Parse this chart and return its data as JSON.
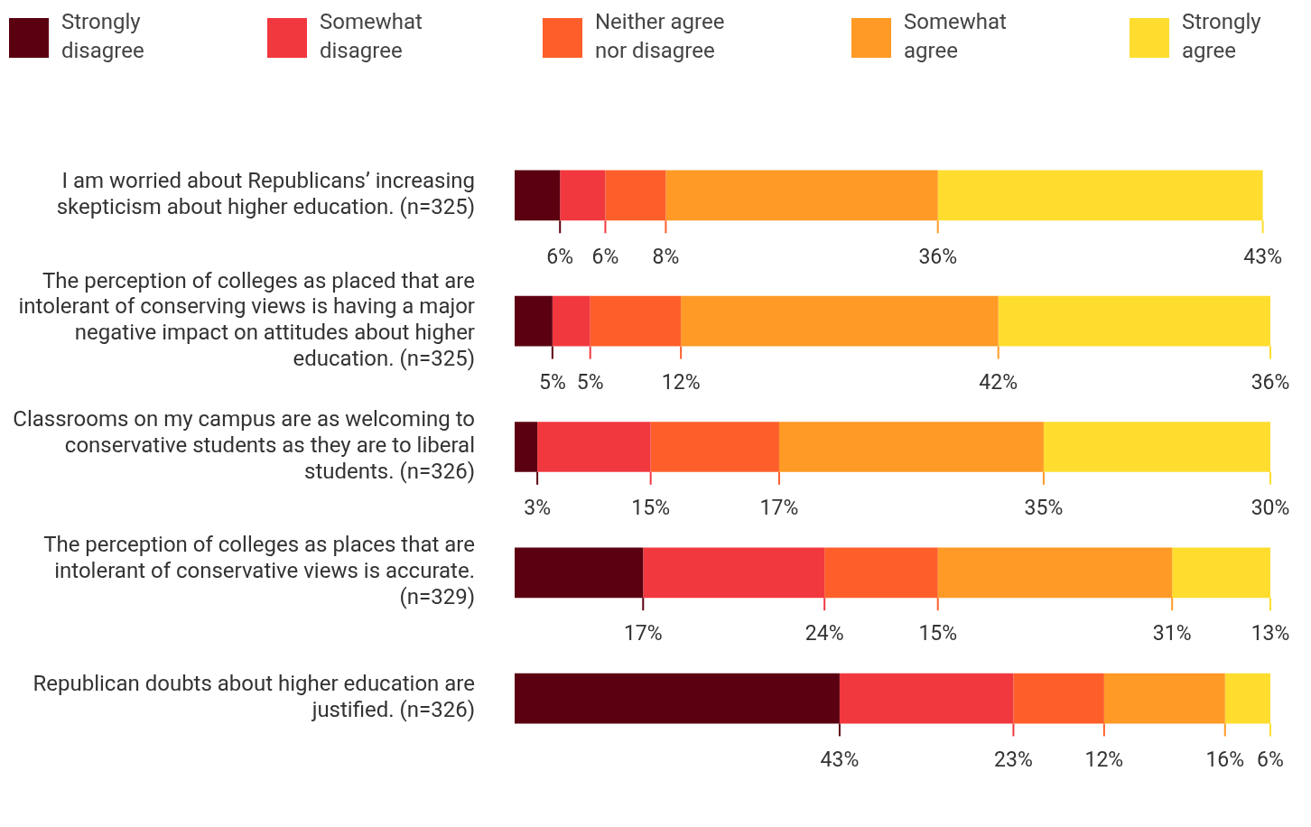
{
  "chart_data": {
    "type": "bar",
    "orientation": "horizontal",
    "stacked": true,
    "legend": "top",
    "categories": [
      "I am worried about Republicans’ increasing skepticism about higher education. (n=325)",
      "The perception of colleges as placed that are intolerant of conserving views is having a major negative impact on attitudes about higher education. (n=325)",
      "Classrooms on my campus are as welcoming to conservative students as they are to liberal students. (n=326)",
      "The perception of colleges as places that are intolerant of conservative views is accurate. (n=329)",
      "Republican doubts about higher education are justified. (n=326)"
    ],
    "series": [
      {
        "name": "Strongly disagree",
        "color": "#5b0010",
        "values": [
          6,
          5,
          3,
          17,
          43
        ],
        "value_labels": [
          "6%",
          "5%",
          "3%",
          "17%",
          "43%"
        ]
      },
      {
        "name": "Somewhat disagree",
        "color": "#f2383f",
        "values": [
          6,
          5,
          15,
          24,
          23
        ],
        "value_labels": [
          "6%",
          "5%",
          "15%",
          "24%",
          "23%"
        ]
      },
      {
        "name": "Neither agree nor disagree",
        "color": "#fe5f2a",
        "values": [
          8,
          12,
          17,
          15,
          12
        ],
        "value_labels": [
          "8%",
          "12%",
          "17%",
          "15%",
          "12%"
        ]
      },
      {
        "name": "Somewhat agree",
        "color": "#fe9a25",
        "values": [
          36,
          42,
          35,
          31,
          16
        ],
        "value_labels": [
          "36%",
          "42%",
          "35%",
          "31%",
          "16%"
        ]
      },
      {
        "name": "Strongly agree",
        "color": "#fedd2f",
        "values": [
          43,
          36,
          30,
          13,
          6
        ],
        "value_labels": [
          "43%",
          "36%",
          "30%",
          "13%",
          "6%"
        ]
      }
    ]
  }
}
